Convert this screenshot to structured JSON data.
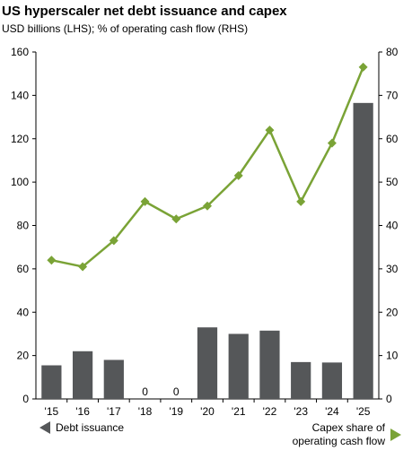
{
  "title": "US hyperscaler net debt issuance and capex",
  "subtitle": "USD billions (LHS); % of operating cash flow (RHS)",
  "legend": {
    "left_label": "Debt issuance",
    "right_label_line1": "Capex share of",
    "right_label_line2": "operating cash flow"
  },
  "colors": {
    "bars": "#555759",
    "line": "#7aa336"
  },
  "chart_data": {
    "type": "bar",
    "categories": [
      "'15",
      "'16",
      "'17",
      "'18",
      "'19",
      "'20",
      "'21",
      "'22",
      "'23",
      "'24",
      "'25"
    ],
    "series": [
      {
        "name": "Debt issuance",
        "type": "bar",
        "axis": "left",
        "values": [
          15.5,
          22,
          18,
          0,
          0,
          33,
          30,
          31.5,
          17,
          16.8,
          136.5
        ],
        "data_labels": [
          "",
          "",
          "",
          "0",
          "0",
          "",
          "",
          "",
          "",
          "",
          ""
        ]
      },
      {
        "name": "Capex share of operating cash flow",
        "type": "line",
        "axis": "right",
        "values": [
          32,
          30.5,
          36.5,
          45.5,
          41.5,
          44.5,
          51.5,
          62,
          45.5,
          59,
          76.5
        ]
      }
    ],
    "y_left": {
      "min": 0,
      "max": 160,
      "ticks": [
        0,
        20,
        40,
        60,
        80,
        100,
        120,
        140,
        160
      ]
    },
    "y_right": {
      "min": 0,
      "max": 80,
      "ticks": [
        0,
        10,
        20,
        30,
        40,
        50,
        60,
        70,
        80
      ]
    },
    "grid": false,
    "legend_position": "bottom"
  }
}
